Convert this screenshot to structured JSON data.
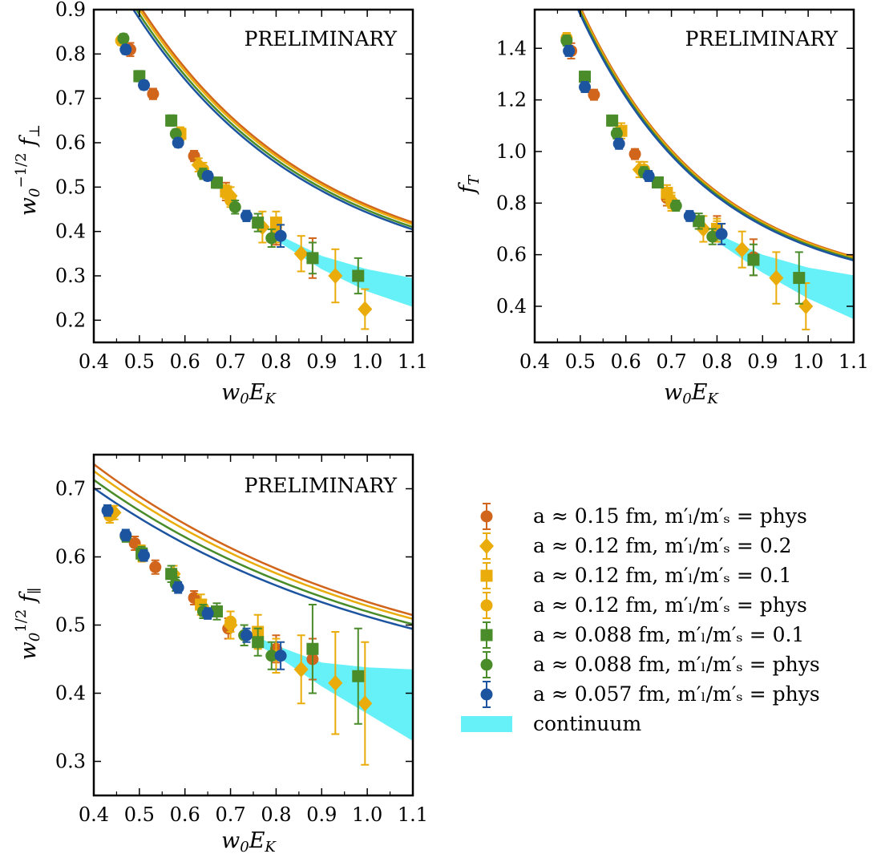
{
  "colors": {
    "orange": "#d1651b",
    "yellow": "#e9ac0b",
    "green": "#4a8c2a",
    "blue": "#1d54a0",
    "band": "#66f0f8"
  },
  "watermark": "PRELIMINARY",
  "legend": [
    {
      "label": "a ≈ 0.15 fm,  m′ₗ/m′ₛ = phys",
      "marker": "circle",
      "color": "#d1651b"
    },
    {
      "label": "a ≈ 0.12 fm,  m′ₗ/m′ₛ = 0.2",
      "marker": "diamond",
      "color": "#e9ac0b"
    },
    {
      "label": "a ≈ 0.12 fm,  m′ₗ/m′ₛ = 0.1",
      "marker": "square",
      "color": "#e9ac0b"
    },
    {
      "label": "a ≈ 0.12 fm,  m′ₗ/m′ₛ = phys",
      "marker": "circle",
      "color": "#e9ac0b"
    },
    {
      "label": "a ≈ 0.088 fm,  m′ₗ/m′ₛ = 0.1",
      "marker": "square",
      "color": "#4a8c2a"
    },
    {
      "label": "a ≈ 0.088 fm,  m′ₗ/m′ₛ = phys",
      "marker": "circle",
      "color": "#4a8c2a"
    },
    {
      "label": "a ≈ 0.057 fm,  m′ₗ/m′ₛ = phys",
      "marker": "circle",
      "color": "#1d54a0"
    },
    {
      "label": "continuum",
      "marker": "band",
      "color": "#66f0f8"
    }
  ],
  "chart_data": [
    {
      "type": "scatter",
      "xlabel": "w₀E_K",
      "ylabel": "w₀^(−1/2) f⊥",
      "xlim": [
        0.4,
        1.1
      ],
      "ylim": [
        0.15,
        0.9
      ],
      "xticks": [
        "0.4",
        "0.5",
        "0.6",
        "0.7",
        "0.8",
        "0.9",
        "1.0",
        "1.1"
      ],
      "yticks": [
        "0.2",
        "0.3",
        "0.4",
        "0.5",
        "0.6",
        "0.7",
        "0.8",
        "0.9"
      ],
      "ytick_values": [
        0.2,
        0.3,
        0.4,
        0.5,
        0.6,
        0.7,
        0.8,
        0.9
      ],
      "fit": {
        "a": 0.28,
        "b": 0.79,
        "c": 0.86
      },
      "band": {
        "lo": [
          [
            0.8,
            0.38
          ],
          [
            0.9,
            0.315
          ],
          [
            1.0,
            0.265
          ],
          [
            1.1,
            0.23
          ]
        ],
        "hi": [
          [
            0.8,
            0.395
          ],
          [
            0.9,
            0.345
          ],
          [
            1.0,
            0.315
          ],
          [
            1.1,
            0.295
          ]
        ]
      },
      "points": [
        {
          "s": 0,
          "x": 0.48,
          "y": 0.81,
          "e": 0.015
        },
        {
          "s": 0,
          "x": 0.53,
          "y": 0.71,
          "e": 0.012
        },
        {
          "s": 0,
          "x": 0.62,
          "y": 0.57,
          "e": 0.012
        },
        {
          "s": 0,
          "x": 0.69,
          "y": 0.49,
          "e": 0.02
        },
        {
          "s": 0,
          "x": 0.8,
          "y": 0.4,
          "e": 0.03
        },
        {
          "s": 0,
          "x": 0.88,
          "y": 0.34,
          "e": 0.045
        },
        {
          "s": 1,
          "x": 0.63,
          "y": 0.55,
          "e": 0.015
        },
        {
          "s": 1,
          "x": 0.7,
          "y": 0.48,
          "e": 0.02
        },
        {
          "s": 1,
          "x": 0.77,
          "y": 0.41,
          "e": 0.035
        },
        {
          "s": 1,
          "x": 0.855,
          "y": 0.35,
          "e": 0.04
        },
        {
          "s": 1,
          "x": 0.93,
          "y": 0.3,
          "e": 0.06
        },
        {
          "s": 1,
          "x": 0.995,
          "y": 0.225,
          "e": 0.045
        },
        {
          "s": 2,
          "x": 0.59,
          "y": 0.62,
          "e": 0.015
        },
        {
          "s": 2,
          "x": 0.69,
          "y": 0.49,
          "e": 0.015
        },
        {
          "s": 2,
          "x": 0.8,
          "y": 0.42,
          "e": 0.025
        },
        {
          "s": 3,
          "x": 0.46,
          "y": 0.83,
          "e": 0.01
        },
        {
          "s": 3,
          "x": 0.64,
          "y": 0.54,
          "e": 0.015
        },
        {
          "s": 3,
          "x": 0.7,
          "y": 0.47,
          "e": 0.015
        },
        {
          "s": 3,
          "x": 0.8,
          "y": 0.4,
          "e": 0.025
        },
        {
          "s": 4,
          "x": 0.5,
          "y": 0.75,
          "e": 0.012
        },
        {
          "s": 4,
          "x": 0.57,
          "y": 0.65,
          "e": 0.012
        },
        {
          "s": 4,
          "x": 0.67,
          "y": 0.51,
          "e": 0.012
        },
        {
          "s": 4,
          "x": 0.76,
          "y": 0.42,
          "e": 0.02
        },
        {
          "s": 4,
          "x": 0.88,
          "y": 0.34,
          "e": 0.035
        },
        {
          "s": 4,
          "x": 0.98,
          "y": 0.3,
          "e": 0.04
        },
        {
          "s": 5,
          "x": 0.465,
          "y": 0.835,
          "e": 0.01
        },
        {
          "s": 5,
          "x": 0.58,
          "y": 0.62,
          "e": 0.01
        },
        {
          "s": 5,
          "x": 0.64,
          "y": 0.53,
          "e": 0.012
        },
        {
          "s": 5,
          "x": 0.71,
          "y": 0.455,
          "e": 0.015
        },
        {
          "s": 5,
          "x": 0.79,
          "y": 0.385,
          "e": 0.02
        },
        {
          "s": 6,
          "x": 0.47,
          "y": 0.81,
          "e": 0.01
        },
        {
          "s": 6,
          "x": 0.51,
          "y": 0.73,
          "e": 0.01
        },
        {
          "s": 6,
          "x": 0.585,
          "y": 0.6,
          "e": 0.01
        },
        {
          "s": 6,
          "x": 0.65,
          "y": 0.525,
          "e": 0.01
        },
        {
          "s": 6,
          "x": 0.735,
          "y": 0.435,
          "e": 0.012
        },
        {
          "s": 6,
          "x": 0.81,
          "y": 0.39,
          "e": 0.025
        }
      ]
    },
    {
      "type": "scatter",
      "xlabel": "w₀E_K",
      "ylabel": "f_T",
      "xlim": [
        0.4,
        1.1
      ],
      "ylim": [
        0.26,
        1.55
      ],
      "xticks": [
        "0.4",
        "0.5",
        "0.6",
        "0.7",
        "0.8",
        "0.9",
        "1.0",
        "1.1"
      ],
      "yticks": [
        "0.4",
        "0.6",
        "0.8",
        "1.0",
        "1.2",
        "1.4"
      ],
      "ytick_values": [
        0.4,
        0.6,
        0.8,
        1.0,
        1.2,
        1.4
      ],
      "fit": {
        "a": 0.45,
        "b": 1.55,
        "c": 0.63
      },
      "band": {
        "lo": [
          [
            0.8,
            0.65
          ],
          [
            0.9,
            0.53
          ],
          [
            1.0,
            0.43
          ],
          [
            1.1,
            0.35
          ]
        ],
        "hi": [
          [
            0.8,
            0.68
          ],
          [
            0.9,
            0.6
          ],
          [
            1.0,
            0.55
          ],
          [
            1.1,
            0.52
          ]
        ]
      },
      "points": [
        {
          "s": 0,
          "x": 0.48,
          "y": 1.39,
          "e": 0.03
        },
        {
          "s": 0,
          "x": 0.53,
          "y": 1.22,
          "e": 0.02
        },
        {
          "s": 0,
          "x": 0.62,
          "y": 0.99,
          "e": 0.02
        },
        {
          "s": 0,
          "x": 0.69,
          "y": 0.82,
          "e": 0.03
        },
        {
          "s": 0,
          "x": 0.8,
          "y": 0.7,
          "e": 0.05
        },
        {
          "s": 0,
          "x": 0.88,
          "y": 0.59,
          "e": 0.07
        },
        {
          "s": 1,
          "x": 0.63,
          "y": 0.93,
          "e": 0.03
        },
        {
          "s": 1,
          "x": 0.7,
          "y": 0.81,
          "e": 0.03
        },
        {
          "s": 1,
          "x": 0.77,
          "y": 0.7,
          "e": 0.05
        },
        {
          "s": 1,
          "x": 0.855,
          "y": 0.62,
          "e": 0.07
        },
        {
          "s": 1,
          "x": 0.93,
          "y": 0.51,
          "e": 0.1
        },
        {
          "s": 1,
          "x": 0.995,
          "y": 0.4,
          "e": 0.09
        },
        {
          "s": 2,
          "x": 0.59,
          "y": 1.08,
          "e": 0.03
        },
        {
          "s": 2,
          "x": 0.69,
          "y": 0.84,
          "e": 0.03
        },
        {
          "s": 2,
          "x": 0.8,
          "y": 0.7,
          "e": 0.04
        },
        {
          "s": 3,
          "x": 0.47,
          "y": 1.44,
          "e": 0.02
        },
        {
          "s": 3,
          "x": 0.64,
          "y": 0.93,
          "e": 0.03
        },
        {
          "s": 3,
          "x": 0.7,
          "y": 0.8,
          "e": 0.03
        },
        {
          "s": 3,
          "x": 0.8,
          "y": 0.69,
          "e": 0.04
        },
        {
          "s": 4,
          "x": 0.51,
          "y": 1.29,
          "e": 0.02
        },
        {
          "s": 4,
          "x": 0.57,
          "y": 1.12,
          "e": 0.02
        },
        {
          "s": 4,
          "x": 0.67,
          "y": 0.88,
          "e": 0.02
        },
        {
          "s": 4,
          "x": 0.76,
          "y": 0.73,
          "e": 0.03
        },
        {
          "s": 4,
          "x": 0.88,
          "y": 0.58,
          "e": 0.06
        },
        {
          "s": 4,
          "x": 0.98,
          "y": 0.51,
          "e": 0.1
        },
        {
          "s": 5,
          "x": 0.47,
          "y": 1.43,
          "e": 0.02
        },
        {
          "s": 5,
          "x": 0.58,
          "y": 1.07,
          "e": 0.02
        },
        {
          "s": 5,
          "x": 0.64,
          "y": 0.92,
          "e": 0.02
        },
        {
          "s": 5,
          "x": 0.71,
          "y": 0.79,
          "e": 0.02
        },
        {
          "s": 5,
          "x": 0.79,
          "y": 0.67,
          "e": 0.03
        },
        {
          "s": 6,
          "x": 0.475,
          "y": 1.39,
          "e": 0.02
        },
        {
          "s": 6,
          "x": 0.51,
          "y": 1.25,
          "e": 0.02
        },
        {
          "s": 6,
          "x": 0.585,
          "y": 1.03,
          "e": 0.02
        },
        {
          "s": 6,
          "x": 0.65,
          "y": 0.905,
          "e": 0.02
        },
        {
          "s": 6,
          "x": 0.74,
          "y": 0.75,
          "e": 0.02
        },
        {
          "s": 6,
          "x": 0.81,
          "y": 0.68,
          "e": 0.04
        }
      ]
    },
    {
      "type": "scatter",
      "xlabel": "w₀E_K",
      "ylabel": "w₀^(1/2) f∥",
      "xlim": [
        0.4,
        1.1
      ],
      "ylim": [
        0.25,
        0.75
      ],
      "xticks": [
        "0.4",
        "0.5",
        "0.6",
        "0.7",
        "0.8",
        "0.9",
        "1.0",
        "1.1"
      ],
      "yticks": [
        "0.3",
        "0.4",
        "0.5",
        "0.6",
        "0.7"
      ],
      "ytick_values": [
        0.3,
        0.4,
        0.5,
        0.6,
        0.7
      ],
      "fit": {
        "a": 0.385,
        "b": 0.33,
        "c": 1.5
      },
      "band": {
        "lo": [
          [
            0.75,
            0.475
          ],
          [
            0.8,
            0.455
          ],
          [
            0.9,
            0.41
          ],
          [
            1.0,
            0.37
          ],
          [
            1.1,
            0.33
          ]
        ],
        "hi": [
          [
            0.75,
            0.485
          ],
          [
            0.8,
            0.47
          ],
          [
            0.9,
            0.445
          ],
          [
            1.0,
            0.438
          ],
          [
            1.1,
            0.435
          ]
        ]
      },
      "points": [
        {
          "s": 0,
          "x": 0.49,
          "y": 0.62,
          "e": 0.01
        },
        {
          "s": 0,
          "x": 0.535,
          "y": 0.585,
          "e": 0.01
        },
        {
          "s": 0,
          "x": 0.62,
          "y": 0.54,
          "e": 0.01
        },
        {
          "s": 0,
          "x": 0.695,
          "y": 0.495,
          "e": 0.015
        },
        {
          "s": 0,
          "x": 0.8,
          "y": 0.465,
          "e": 0.02
        },
        {
          "s": 0,
          "x": 0.88,
          "y": 0.45,
          "e": 0.03
        },
        {
          "s": 1,
          "x": 0.445,
          "y": 0.665,
          "e": 0.01
        },
        {
          "s": 1,
          "x": 0.575,
          "y": 0.575,
          "e": 0.012
        },
        {
          "s": 1,
          "x": 0.7,
          "y": 0.5,
          "e": 0.02
        },
        {
          "s": 1,
          "x": 0.855,
          "y": 0.435,
          "e": 0.05
        },
        {
          "s": 1,
          "x": 0.93,
          "y": 0.415,
          "e": 0.075
        },
        {
          "s": 1,
          "x": 0.995,
          "y": 0.385,
          "e": 0.09
        },
        {
          "s": 2,
          "x": 0.505,
          "y": 0.605,
          "e": 0.012
        },
        {
          "s": 2,
          "x": 0.635,
          "y": 0.53,
          "e": 0.015
        },
        {
          "s": 2,
          "x": 0.76,
          "y": 0.49,
          "e": 0.025
        },
        {
          "s": 3,
          "x": 0.435,
          "y": 0.66,
          "e": 0.01
        },
        {
          "s": 3,
          "x": 0.64,
          "y": 0.525,
          "e": 0.012
        },
        {
          "s": 3,
          "x": 0.7,
          "y": 0.505,
          "e": 0.015
        },
        {
          "s": 3,
          "x": 0.8,
          "y": 0.455,
          "e": 0.025
        },
        {
          "s": 4,
          "x": 0.505,
          "y": 0.605,
          "e": 0.01
        },
        {
          "s": 4,
          "x": 0.57,
          "y": 0.575,
          "e": 0.012
        },
        {
          "s": 4,
          "x": 0.67,
          "y": 0.52,
          "e": 0.012
        },
        {
          "s": 4,
          "x": 0.76,
          "y": 0.475,
          "e": 0.02
        },
        {
          "s": 4,
          "x": 0.88,
          "y": 0.465,
          "e": 0.065
        },
        {
          "s": 4,
          "x": 0.98,
          "y": 0.425,
          "e": 0.07
        },
        {
          "s": 5,
          "x": 0.47,
          "y": 0.63,
          "e": 0.008
        },
        {
          "s": 5,
          "x": 0.58,
          "y": 0.56,
          "e": 0.01
        },
        {
          "s": 5,
          "x": 0.64,
          "y": 0.52,
          "e": 0.01
        },
        {
          "s": 5,
          "x": 0.73,
          "y": 0.485,
          "e": 0.015
        },
        {
          "s": 5,
          "x": 0.79,
          "y": 0.455,
          "e": 0.02
        },
        {
          "s": 6,
          "x": 0.43,
          "y": 0.668,
          "e": 0.008
        },
        {
          "s": 6,
          "x": 0.47,
          "y": 0.632,
          "e": 0.008
        },
        {
          "s": 6,
          "x": 0.51,
          "y": 0.602,
          "e": 0.008
        },
        {
          "s": 6,
          "x": 0.585,
          "y": 0.555,
          "e": 0.008
        },
        {
          "s": 6,
          "x": 0.65,
          "y": 0.517,
          "e": 0.008
        },
        {
          "s": 6,
          "x": 0.735,
          "y": 0.485,
          "e": 0.01
        },
        {
          "s": 6,
          "x": 0.81,
          "y": 0.455,
          "e": 0.02
        }
      ]
    }
  ]
}
